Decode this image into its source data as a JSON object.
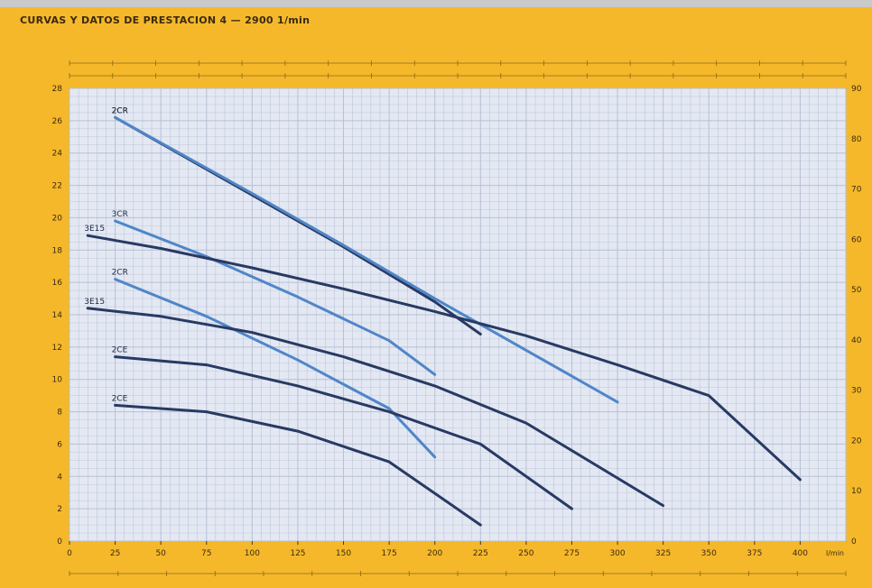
{
  "header": {
    "title": "CURVAS Y DATOS DE PRESTACION 4 — 2900 1/min"
  },
  "colors": {
    "frame": "#f5b82a",
    "plot_bg": "#e3e8f3",
    "grid": "#b7c0d4",
    "dark_curve": "#283a63",
    "light_curve": "#4f86c8"
  },
  "chart_data": {
    "type": "line",
    "title": "CURVAS Y DATOS DE PRESTACION 4 — 2900 1/min",
    "xlabel": "",
    "ylabel": "",
    "x_units": "l/min",
    "xlim": [
      0,
      425
    ],
    "ylim": [
      0,
      28
    ],
    "y_right_lim": [
      0,
      90
    ],
    "x_ticks": [
      0,
      25,
      50,
      75,
      100,
      125,
      150,
      175,
      200,
      225,
      250,
      275,
      300,
      325,
      350,
      375,
      400
    ],
    "y_ticks": [
      0,
      2,
      4,
      6,
      8,
      10,
      12,
      14,
      16,
      18,
      20,
      22,
      24,
      26,
      28
    ],
    "y_right_ticks": [
      0,
      10,
      20,
      30,
      40,
      50,
      60,
      70,
      80,
      90
    ],
    "grid": true,
    "series": [
      {
        "name": "2CR",
        "color": "dark",
        "x": [
          25,
          50,
          100,
          150,
          200,
          225
        ],
        "y": [
          26.2,
          24.6,
          21.4,
          18.2,
          14.8,
          12.8
        ]
      },
      {
        "name": "2CR",
        "color": "light",
        "x": [
          25,
          100,
          150,
          200,
          250,
          300
        ],
        "y": [
          26.2,
          21.5,
          18.3,
          15.0,
          11.8,
          8.6
        ]
      },
      {
        "name": "3CR",
        "color": "light",
        "x": [
          25,
          75,
          125,
          175,
          200
        ],
        "y": [
          19.8,
          17.6,
          15.1,
          12.4,
          10.3
        ]
      },
      {
        "name": "3E15",
        "color": "dark",
        "x": [
          10,
          50,
          100,
          150,
          200,
          250,
          300,
          350,
          400
        ],
        "y": [
          18.9,
          18.1,
          16.9,
          15.6,
          14.2,
          12.7,
          10.9,
          9.0,
          3.8
        ]
      },
      {
        "name": "2CR",
        "color": "light",
        "x": [
          25,
          75,
          125,
          175,
          200
        ],
        "y": [
          16.2,
          13.9,
          11.2,
          8.2,
          5.2
        ]
      },
      {
        "name": "3E15",
        "color": "dark",
        "x": [
          10,
          50,
          100,
          150,
          200,
          250,
          325
        ],
        "y": [
          14.4,
          13.9,
          12.9,
          11.4,
          9.6,
          7.3,
          2.2
        ]
      },
      {
        "name": "2CE",
        "color": "dark",
        "x": [
          25,
          75,
          125,
          175,
          225,
          275
        ],
        "y": [
          11.4,
          10.9,
          9.6,
          8.0,
          6.0,
          2.0
        ]
      },
      {
        "name": "2CE",
        "color": "dark",
        "x": [
          25,
          75,
          125,
          175,
          225
        ],
        "y": [
          8.4,
          8.0,
          6.8,
          4.9,
          1.0
        ]
      }
    ]
  }
}
